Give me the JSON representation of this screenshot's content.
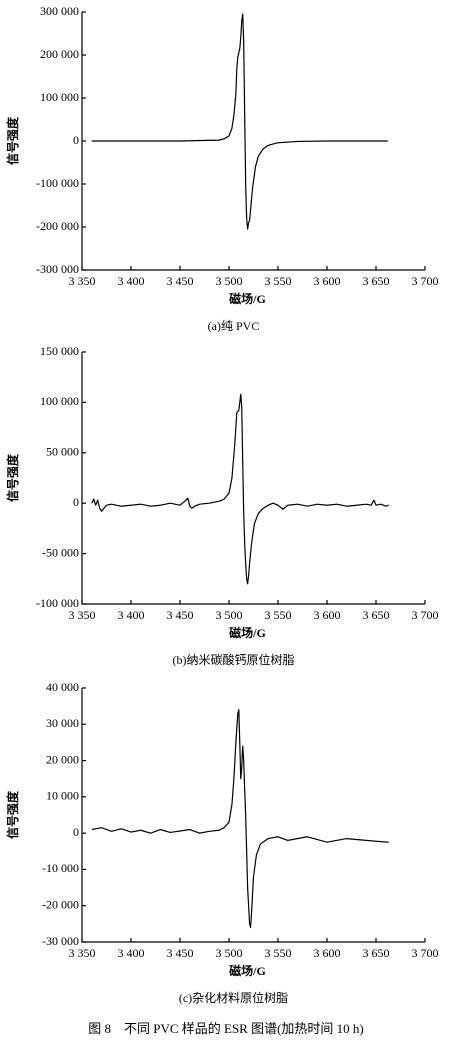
{
  "figure_caption": "图 8　不同 PVC 样品的 ESR 图谱(加热时间 10 h)",
  "chart_data": [
    {
      "type": "line",
      "caption": "(a)纯 PVC",
      "x_label": "磁场/G",
      "y_label": "信号强度",
      "color": "#000000",
      "x": [
        3360,
        3400,
        3450,
        3490,
        3495,
        3500,
        3503,
        3505,
        3507,
        3508,
        3509,
        3510,
        3511,
        3512,
        3513,
        3514,
        3515,
        3516,
        3517,
        3518,
        3519,
        3520,
        3521,
        3522,
        3524,
        3527,
        3530,
        3535,
        3540,
        3550,
        3570,
        3600,
        3630,
        3662
      ],
      "values": [
        0,
        0,
        0,
        2000,
        5000,
        12000,
        30000,
        60000,
        110000,
        170000,
        195000,
        205000,
        215000,
        240000,
        280000,
        295000,
        230000,
        60000,
        -100000,
        -180000,
        -205000,
        -190000,
        -185000,
        -160000,
        -110000,
        -60000,
        -35000,
        -18000,
        -10000,
        -4000,
        -1000,
        0,
        0,
        0
      ],
      "xlim": [
        3350,
        3700
      ],
      "xticks": [
        {
          "value": 3350,
          "label": "3 350"
        },
        {
          "value": 3400,
          "label": "3 400"
        },
        {
          "value": 3450,
          "label": "3 450"
        },
        {
          "value": 3500,
          "label": "3 500"
        },
        {
          "value": 3550,
          "label": "3 550"
        },
        {
          "value": 3600,
          "label": "3 600"
        },
        {
          "value": 3650,
          "label": "3 650"
        },
        {
          "value": 3700,
          "label": "3 700"
        }
      ],
      "ylim": [
        -300000,
        300000
      ],
      "yticks": [
        {
          "value": 300000,
          "label": "300 000"
        },
        {
          "value": 200000,
          "label": "200 000"
        },
        {
          "value": 100000,
          "label": "100 000"
        },
        0,
        {
          "value": -100000,
          "label": "-100 000"
        },
        {
          "value": -200000,
          "label": "-200 000"
        },
        {
          "value": -300000,
          "label": "-300 000"
        }
      ]
    },
    {
      "type": "line",
      "caption": "(b)纳米碳酸钙原位树脂",
      "x_label": "磁场/G",
      "y_label": "信号强度",
      "color": "#000000",
      "x": [
        3360,
        3362,
        3364,
        3366,
        3368,
        3370,
        3375,
        3380,
        3390,
        3400,
        3410,
        3420,
        3430,
        3440,
        3450,
        3455,
        3458,
        3460,
        3462,
        3465,
        3470,
        3480,
        3490,
        3495,
        3500,
        3503,
        3506,
        3508,
        3510,
        3511,
        3512,
        3513,
        3514,
        3515,
        3516,
        3517,
        3518,
        3519,
        3520,
        3521,
        3523,
        3526,
        3530,
        3535,
        3540,
        3545,
        3550,
        3555,
        3560,
        3570,
        3580,
        3590,
        3600,
        3610,
        3620,
        3630,
        3640,
        3645,
        3648,
        3650,
        3655,
        3660,
        3663
      ],
      "values": [
        0,
        4000,
        -2000,
        3000,
        -5000,
        -8000,
        -2000,
        -1000,
        -3000,
        -2000,
        -1000,
        -3000,
        -2000,
        0,
        -2000,
        2000,
        5000,
        -3000,
        -5000,
        -3000,
        -1000,
        0,
        2000,
        4000,
        10000,
        25000,
        60000,
        90000,
        92000,
        100000,
        108000,
        95000,
        40000,
        -10000,
        -40000,
        -60000,
        -75000,
        -80000,
        -72000,
        -60000,
        -40000,
        -20000,
        -10000,
        -5000,
        -2000,
        0,
        -2000,
        -6000,
        -2000,
        -1000,
        -3000,
        -1000,
        -2000,
        -1000,
        -3000,
        -2000,
        -1000,
        -2000,
        3000,
        -2000,
        -1000,
        -3000,
        -2000
      ],
      "xlim": [
        3350,
        3700
      ],
      "xticks": [
        {
          "value": 3350,
          "label": "3 350"
        },
        {
          "value": 3400,
          "label": "3 400"
        },
        {
          "value": 3450,
          "label": "3 450"
        },
        {
          "value": 3500,
          "label": "3 500"
        },
        {
          "value": 3550,
          "label": "3 550"
        },
        {
          "value": 3600,
          "label": "3 600"
        },
        {
          "value": 3650,
          "label": "3 650"
        },
        {
          "value": 3700,
          "label": "3 700"
        }
      ],
      "ylim": [
        -100000,
        150000
      ],
      "yticks": [
        {
          "value": 150000,
          "label": "150 000"
        },
        {
          "value": 100000,
          "label": "100 000"
        },
        {
          "value": 50000,
          "label": "50 000"
        },
        0,
        {
          "value": -50000,
          "label": "-50 000"
        },
        {
          "value": -100000,
          "label": "-100 000"
        }
      ]
    },
    {
      "type": "line",
      "caption": "(c)杂化材料原位树脂",
      "x_label": "磁场/G",
      "y_label": "信号强度",
      "color": "#000000",
      "x": [
        3360,
        3370,
        3380,
        3390,
        3400,
        3410,
        3420,
        3430,
        3440,
        3450,
        3460,
        3470,
        3480,
        3490,
        3495,
        3500,
        3503,
        3505,
        3507,
        3509,
        3510,
        3511,
        3512,
        3513,
        3514,
        3515,
        3516,
        3517,
        3518,
        3519,
        3520,
        3521,
        3522,
        3523,
        3525,
        3528,
        3532,
        3540,
        3550,
        3560,
        3580,
        3600,
        3620,
        3640,
        3663
      ],
      "values": [
        1000,
        1500,
        500,
        1200,
        300,
        800,
        0,
        1000,
        200,
        600,
        1000,
        0,
        500,
        800,
        1500,
        3000,
        8000,
        15000,
        25000,
        33000,
        34000,
        25000,
        15000,
        18000,
        24000,
        20000,
        12000,
        5000,
        -5000,
        -15000,
        -20000,
        -25000,
        -26000,
        -22000,
        -12000,
        -6000,
        -3000,
        -1500,
        -1000,
        -2000,
        -1000,
        -2500,
        -1500,
        -2000,
        -2500
      ],
      "xlim": [
        3350,
        3700
      ],
      "xticks": [
        {
          "value": 3350,
          "label": "3 350"
        },
        {
          "value": 3400,
          "label": "3 400"
        },
        {
          "value": 3450,
          "label": "3 450"
        },
        {
          "value": 3500,
          "label": "3 500"
        },
        {
          "value": 3550,
          "label": "3 550"
        },
        {
          "value": 3600,
          "label": "3 600"
        },
        {
          "value": 3650,
          "label": "3 650"
        },
        {
          "value": 3700,
          "label": "3 700"
        }
      ],
      "ylim": [
        -30000,
        40000
      ],
      "yticks": [
        {
          "value": 40000,
          "label": "40 000"
        },
        {
          "value": 30000,
          "label": "30 000"
        },
        {
          "value": 20000,
          "label": "20 000"
        },
        {
          "value": 10000,
          "label": "10 000"
        },
        0,
        {
          "value": -10000,
          "label": "-10 000"
        },
        {
          "value": -20000,
          "label": "-20 000"
        },
        {
          "value": -30000,
          "label": "-30 000"
        }
      ]
    }
  ]
}
